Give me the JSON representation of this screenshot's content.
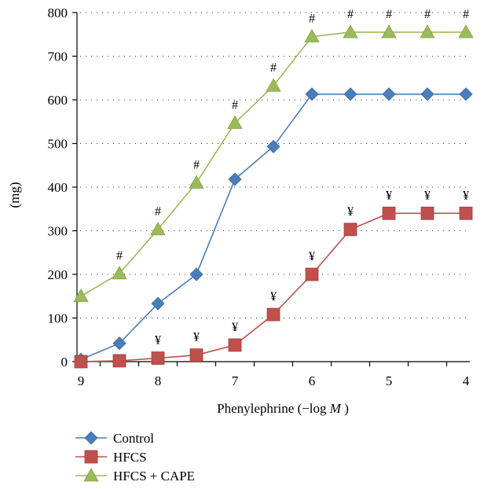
{
  "chart_data": {
    "type": "line",
    "title": "",
    "xlabel": "Phenylephrine (−log",
    "xlabel_var": "M",
    "xlabel_close": ")",
    "ylabel": "(mg)",
    "x_reversed": true,
    "xlim": [
      9,
      4
    ],
    "ylim": [
      0,
      800
    ],
    "x_ticks": [
      "9",
      "8",
      "7",
      "6",
      "5",
      "4"
    ],
    "y_ticks": [
      "0",
      "100",
      "200",
      "300",
      "400",
      "500",
      "600",
      "700",
      "800"
    ],
    "grid": "horizontal dotted",
    "legend_position": "bottom-left",
    "x": [
      9,
      8.5,
      8,
      7.5,
      7,
      6.5,
      6,
      5.5,
      5,
      4.5,
      4
    ],
    "series": [
      {
        "name": "Control",
        "color": "#4a7ebb",
        "marker": "diamond",
        "values": [
          5,
          42,
          133,
          200,
          418,
          493,
          613,
          613,
          613,
          613,
          613
        ],
        "annotations": []
      },
      {
        "name": "HFCS",
        "color": "#c0504d",
        "marker": "square",
        "values": [
          0,
          2,
          8,
          15,
          38,
          108,
          200,
          303,
          340,
          340,
          340
        ],
        "annotations": [
          {
            "x": 8,
            "text": "¥"
          },
          {
            "x": 7.5,
            "text": "¥"
          },
          {
            "x": 7,
            "text": "¥"
          },
          {
            "x": 6.5,
            "text": "¥"
          },
          {
            "x": 6,
            "text": "¥"
          },
          {
            "x": 5.5,
            "text": "¥"
          },
          {
            "x": 5,
            "text": "¥"
          },
          {
            "x": 4.5,
            "text": "¥"
          },
          {
            "x": 4,
            "text": "¥"
          }
        ]
      },
      {
        "name": "HFCS + CAPE",
        "color": "#9bbb59",
        "marker": "triangle",
        "values": [
          150,
          202,
          303,
          410,
          547,
          632,
          745,
          755,
          755,
          755,
          755
        ],
        "annotations": [
          {
            "x": 8.5,
            "text": "#"
          },
          {
            "x": 8,
            "text": "#"
          },
          {
            "x": 7.5,
            "text": "#"
          },
          {
            "x": 7,
            "text": "#"
          },
          {
            "x": 6.5,
            "text": "#"
          },
          {
            "x": 6,
            "text": "#"
          },
          {
            "x": 5.5,
            "text": "#"
          },
          {
            "x": 5,
            "text": "#"
          },
          {
            "x": 4.5,
            "text": "#"
          },
          {
            "x": 4,
            "text": "#"
          }
        ]
      }
    ]
  }
}
